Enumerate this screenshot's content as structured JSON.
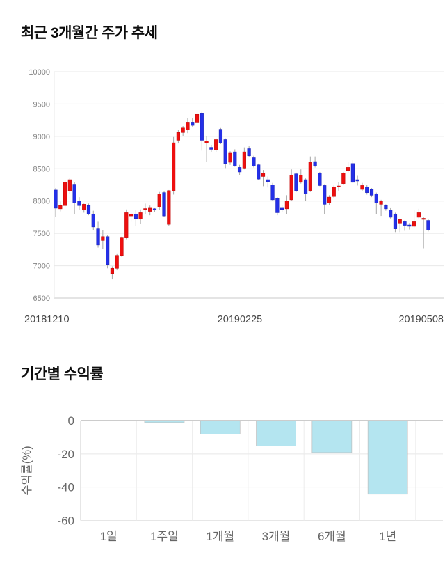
{
  "page": {
    "background": "#ffffff"
  },
  "chart_data": [
    {
      "type": "candlestick",
      "title": "최근 3개월간 주가 추세",
      "y_ticks": [
        10000,
        9500,
        9000,
        8500,
        8000,
        7500,
        7000,
        6500
      ],
      "ylim": [
        6500,
        10000
      ],
      "x_tick_labels": [
        "20181210",
        "20190225",
        "20190508"
      ],
      "grid": true,
      "legend": "none",
      "ohlc_order": [
        "open",
        "high",
        "low",
        "close"
      ],
      "colors": {
        "up": "#ee0f0f",
        "up_border": "#c50b0b",
        "down": "#2430e8",
        "down_border": "#1b23bc",
        "wick": "#a6a6a6",
        "grid": "#e8e8e8",
        "axis": "#c8c8c8",
        "y_tick_label": "#858585",
        "x_tick_label": "#484848"
      },
      "candles": [
        [
          8170,
          8200,
          7750,
          7890
        ],
        [
          7880,
          7990,
          7840,
          7930
        ],
        [
          7930,
          8330,
          7900,
          8290
        ],
        [
          8160,
          8360,
          8110,
          8330
        ],
        [
          8260,
          8290,
          7800,
          7970
        ],
        [
          8000,
          8060,
          7860,
          7930
        ],
        [
          7860,
          7960,
          7820,
          7950
        ],
        [
          7930,
          7960,
          7780,
          7800
        ],
        [
          7800,
          7850,
          7550,
          7600
        ],
        [
          7570,
          7680,
          7280,
          7320
        ],
        [
          7390,
          7550,
          7260,
          7450
        ],
        [
          7450,
          7470,
          6960,
          7020
        ],
        [
          6880,
          6990,
          6790,
          6960
        ],
        [
          6960,
          7180,
          6930,
          7160
        ],
        [
          7160,
          7450,
          7140,
          7430
        ],
        [
          7430,
          7870,
          7410,
          7820
        ],
        [
          7770,
          7830,
          7680,
          7800
        ],
        [
          7800,
          7860,
          7620,
          7730
        ],
        [
          7720,
          7870,
          7650,
          7820
        ],
        [
          7870,
          7960,
          7800,
          7880
        ],
        [
          7840,
          7930,
          7780,
          7890
        ],
        [
          7880,
          7890,
          7830,
          7860
        ],
        [
          7910,
          8140,
          7860,
          8110
        ],
        [
          8130,
          8150,
          7760,
          7770
        ],
        [
          7640,
          8170,
          7620,
          8160
        ],
        [
          8160,
          8990,
          8100,
          8900
        ],
        [
          8940,
          9100,
          8890,
          9060
        ],
        [
          9060,
          9160,
          9000,
          9130
        ],
        [
          9100,
          9280,
          9050,
          9220
        ],
        [
          9220,
          9280,
          9150,
          9170
        ],
        [
          9220,
          9400,
          9180,
          9340
        ],
        [
          9350,
          9380,
          8780,
          8940
        ],
        [
          8900,
          9000,
          8610,
          8930
        ],
        [
          8830,
          8870,
          8760,
          8800
        ],
        [
          8790,
          8970,
          8760,
          8950
        ],
        [
          9110,
          9130,
          8880,
          8900
        ],
        [
          8950,
          8970,
          8510,
          8580
        ],
        [
          8600,
          8770,
          8560,
          8740
        ],
        [
          8760,
          8800,
          8530,
          8540
        ],
        [
          8520,
          8560,
          8400,
          8450
        ],
        [
          8510,
          8830,
          8490,
          8760
        ],
        [
          8810,
          8850,
          8680,
          8700
        ],
        [
          8670,
          8700,
          8520,
          8540
        ],
        [
          8560,
          8580,
          8320,
          8340
        ],
        [
          8380,
          8480,
          8230,
          8430
        ],
        [
          8330,
          8380,
          8210,
          8300
        ],
        [
          8250,
          8280,
          8000,
          8020
        ],
        [
          8040,
          8060,
          7780,
          7820
        ],
        [
          7890,
          7940,
          7830,
          7870
        ],
        [
          7880,
          8090,
          7800,
          8000
        ],
        [
          8020,
          8490,
          8000,
          8400
        ],
        [
          8420,
          8440,
          8140,
          8160
        ],
        [
          8290,
          8490,
          8270,
          8400
        ],
        [
          8330,
          8350,
          8000,
          8110
        ],
        [
          8160,
          8690,
          8140,
          8600
        ],
        [
          8610,
          8690,
          8520,
          8540
        ],
        [
          8430,
          8450,
          8230,
          8240
        ],
        [
          8240,
          8260,
          7800,
          7950
        ],
        [
          7970,
          8090,
          7940,
          8060
        ],
        [
          8070,
          8240,
          8050,
          8220
        ],
        [
          8220,
          8290,
          8160,
          8230
        ],
        [
          8270,
          8450,
          8250,
          8430
        ],
        [
          8470,
          8610,
          8440,
          8520
        ],
        [
          8580,
          8630,
          8280,
          8290
        ],
        [
          8330,
          8390,
          8240,
          8310
        ],
        [
          8180,
          8280,
          8150,
          8240
        ],
        [
          8220,
          8250,
          8100,
          8130
        ],
        [
          8180,
          8200,
          8060,
          8090
        ],
        [
          8110,
          8130,
          7800,
          7970
        ],
        [
          7950,
          8020,
          7770,
          8000
        ],
        [
          7930,
          7950,
          7850,
          7880
        ],
        [
          7860,
          7890,
          7730,
          7750
        ],
        [
          7800,
          7820,
          7520,
          7570
        ],
        [
          7660,
          7730,
          7520,
          7715
        ],
        [
          7680,
          7700,
          7540,
          7625
        ],
        [
          7630,
          7660,
          7560,
          7610
        ],
        [
          7610,
          7860,
          7590,
          7680
        ],
        [
          7750,
          7880,
          7730,
          7820
        ],
        [
          7720,
          7750,
          7270,
          7730
        ],
        [
          7700,
          7720,
          7530,
          7550
        ]
      ]
    },
    {
      "type": "bar",
      "title": "기간별 수익률",
      "ylabel": "수익률(%)",
      "categories": [
        "1일",
        "1주일",
        "1개월",
        "3개월",
        "6개월",
        "1년"
      ],
      "values": [
        0,
        -1,
        -8,
        -15,
        -19,
        -44
      ],
      "y_ticks": [
        0,
        -20,
        -40,
        -60
      ],
      "ylim": [
        -60,
        0
      ],
      "grid": true,
      "legend": "none",
      "colors": {
        "bar": "#b4e5f0",
        "bar_border": "#bdbdbd",
        "zero_line": "#999999",
        "grid": "#e6e6e6",
        "separator": "#ececec",
        "axis": "#cccccc",
        "label": "#666666"
      }
    }
  ]
}
